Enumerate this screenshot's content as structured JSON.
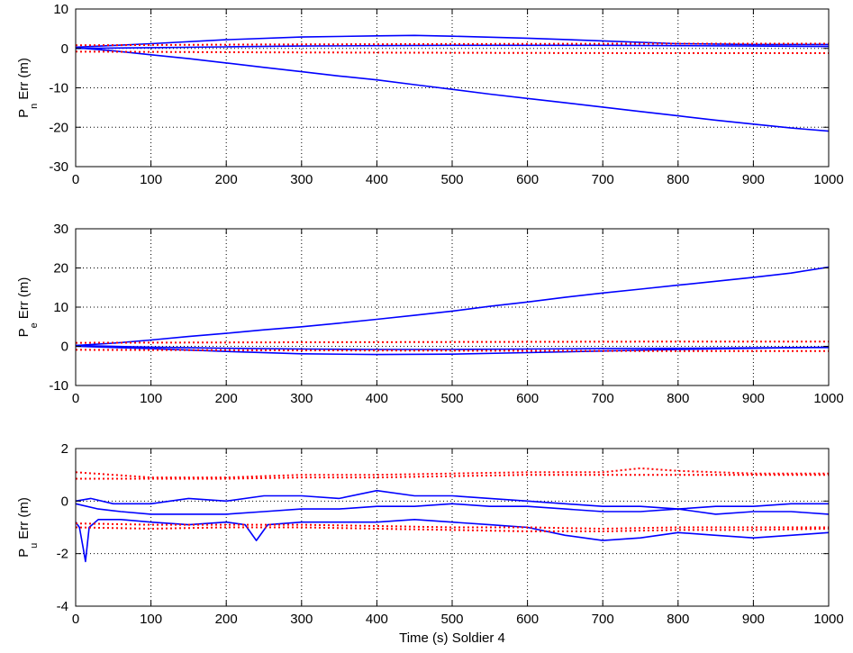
{
  "chart_data": [
    {
      "type": "line",
      "ylabel": {
        "base": "P",
        "sub": "n",
        "rest": "Err (m)"
      },
      "xlabel": "",
      "xlim": [
        0,
        1000
      ],
      "ylim": [
        -30,
        10
      ],
      "xticks": [
        0,
        100,
        200,
        300,
        400,
        500,
        600,
        700,
        800,
        900,
        1000
      ],
      "yticks": [
        -30,
        -20,
        -10,
        0,
        10
      ],
      "grid": true,
      "series": [
        {
          "color": "#0000ff",
          "style": "solid",
          "x": [
            0,
            50,
            100,
            150,
            200,
            250,
            300,
            350,
            400,
            450,
            500,
            550,
            600,
            650,
            700,
            750,
            800,
            850,
            900,
            950,
            1000
          ],
          "y": [
            0.2,
            -0.6,
            -1.6,
            -2.6,
            -3.7,
            -4.8,
            -5.9,
            -7.0,
            -8.0,
            -9.2,
            -10.4,
            -11.6,
            -12.7,
            -13.8,
            -14.9,
            -16.0,
            -17.1,
            -18.2,
            -19.2,
            -20.2,
            -21.0
          ]
        },
        {
          "color": "#0000ff",
          "style": "solid",
          "x": [
            0,
            100,
            200,
            300,
            400,
            450,
            500,
            600,
            700,
            800,
            900,
            1000
          ],
          "y": [
            0.3,
            1.2,
            2.2,
            2.9,
            3.2,
            3.3,
            3.1,
            2.6,
            1.9,
            1.2,
            1.0,
            1.0
          ]
        },
        {
          "color": "#0000ff",
          "style": "solid",
          "x": [
            0,
            100,
            200,
            300,
            400,
            500,
            600,
            700,
            800,
            900,
            1000
          ],
          "y": [
            0,
            0.2,
            0.4,
            0.6,
            0.7,
            0.8,
            0.8,
            0.8,
            0.7,
            0.6,
            0.5
          ]
        },
        {
          "color": "#ff0000",
          "style": "dotted",
          "x": [
            0,
            250,
            500,
            750,
            1000
          ],
          "y": [
            0.8,
            1.0,
            1.1,
            1.2,
            1.2
          ]
        },
        {
          "color": "#ff0000",
          "style": "dotted",
          "x": [
            0,
            250,
            500,
            750,
            1000
          ],
          "y": [
            -0.8,
            -1.0,
            -1.1,
            -1.2,
            -1.2
          ]
        }
      ]
    },
    {
      "type": "line",
      "ylabel": {
        "base": "P",
        "sub": "e",
        "rest": "Err (m)"
      },
      "xlabel": "",
      "xlim": [
        0,
        1000
      ],
      "ylim": [
        -10,
        30
      ],
      "xticks": [
        0,
        100,
        200,
        300,
        400,
        500,
        600,
        700,
        800,
        900,
        1000
      ],
      "yticks": [
        -10,
        0,
        10,
        20,
        30
      ],
      "grid": true,
      "series": [
        {
          "color": "#0000ff",
          "style": "solid",
          "x": [
            0,
            50,
            100,
            150,
            200,
            250,
            300,
            350,
            400,
            450,
            500,
            550,
            600,
            650,
            700,
            750,
            800,
            850,
            900,
            950,
            1000
          ],
          "y": [
            0.2,
            0.8,
            1.6,
            2.5,
            3.3,
            4.2,
            5.0,
            5.9,
            6.9,
            7.9,
            9.0,
            10.2,
            11.3,
            12.5,
            13.6,
            14.6,
            15.6,
            16.6,
            17.6,
            18.7,
            20.2
          ]
        },
        {
          "color": "#0000ff",
          "style": "solid",
          "x": [
            0,
            100,
            200,
            300,
            400,
            500,
            600,
            700,
            800,
            900,
            1000
          ],
          "y": [
            0,
            -0.6,
            -1.3,
            -1.9,
            -2.1,
            -2.0,
            -1.6,
            -1.2,
            -0.8,
            -0.5,
            -0.2
          ]
        },
        {
          "color": "#0000ff",
          "style": "solid",
          "x": [
            0,
            100,
            200,
            300,
            400,
            500,
            600,
            700,
            800,
            900,
            1000
          ],
          "y": [
            0.2,
            -0.2,
            -0.5,
            -0.7,
            -0.8,
            -0.8,
            -0.7,
            -0.6,
            -0.5,
            -0.4,
            -0.3
          ]
        },
        {
          "color": "#ff0000",
          "style": "dotted",
          "x": [
            0,
            250,
            500,
            750,
            1000
          ],
          "y": [
            0.9,
            1.0,
            1.1,
            1.2,
            1.2
          ]
        },
        {
          "color": "#ff0000",
          "style": "dotted",
          "x": [
            0,
            250,
            500,
            750,
            1000
          ],
          "y": [
            -0.9,
            -1.0,
            -1.1,
            -1.2,
            -1.2
          ]
        }
      ]
    },
    {
      "type": "line",
      "ylabel": {
        "base": "P",
        "sub": "u",
        "rest": "Err (m)"
      },
      "xlabel": "Time (s) Soldier 4",
      "xlim": [
        0,
        1000
      ],
      "ylim": [
        -4,
        2
      ],
      "xticks": [
        0,
        100,
        200,
        300,
        400,
        500,
        600,
        700,
        800,
        900,
        1000
      ],
      "yticks": [
        -4,
        -2,
        0,
        2
      ],
      "grid": true,
      "series": [
        {
          "color": "#0000ff",
          "style": "solid",
          "x": [
            0,
            20,
            50,
            100,
            150,
            200,
            250,
            300,
            350,
            400,
            450,
            500,
            550,
            600,
            650,
            700,
            750,
            800,
            850,
            900,
            950,
            1000
          ],
          "y": [
            0,
            0.1,
            -0.1,
            -0.1,
            0.1,
            0,
            0.2,
            0.2,
            0.1,
            0.4,
            0.2,
            0.2,
            0.1,
            0,
            -0.1,
            -0.2,
            -0.2,
            -0.3,
            -0.2,
            -0.2,
            -0.1,
            -0.1
          ]
        },
        {
          "color": "#0000ff",
          "style": "solid",
          "x": [
            0,
            30,
            60,
            100,
            150,
            200,
            250,
            300,
            350,
            400,
            450,
            500,
            550,
            600,
            650,
            700,
            750,
            800,
            850,
            900,
            950,
            1000
          ],
          "y": [
            -0.1,
            -0.3,
            -0.4,
            -0.5,
            -0.5,
            -0.5,
            -0.4,
            -0.3,
            -0.3,
            -0.2,
            -0.2,
            -0.1,
            -0.2,
            -0.2,
            -0.3,
            -0.4,
            -0.4,
            -0.3,
            -0.5,
            -0.4,
            -0.4,
            -0.5
          ]
        },
        {
          "color": "#0000ff",
          "style": "solid",
          "x": [
            0,
            5,
            10,
            13,
            18,
            30,
            60,
            100,
            150,
            200,
            225,
            240,
            255,
            300,
            350,
            400,
            450,
            500,
            550,
            600,
            650,
            700,
            750,
            800,
            850,
            900,
            950,
            1000
          ],
          "y": [
            -0.8,
            -1.0,
            -1.8,
            -2.3,
            -1.0,
            -0.7,
            -0.7,
            -0.8,
            -0.9,
            -0.8,
            -0.9,
            -1.5,
            -0.9,
            -0.8,
            -0.8,
            -0.8,
            -0.7,
            -0.8,
            -0.9,
            -1.0,
            -1.3,
            -1.5,
            -1.4,
            -1.2,
            -1.3,
            -1.4,
            -1.3,
            -1.2
          ]
        },
        {
          "color": "#ff0000",
          "style": "dotted",
          "x": [
            0,
            100,
            200,
            300,
            400,
            500,
            600,
            700,
            750,
            800,
            900,
            1000
          ],
          "y": [
            1.1,
            0.9,
            0.9,
            1.0,
            1.0,
            1.05,
            1.1,
            1.1,
            1.25,
            1.15,
            1.05,
            1.05
          ]
        },
        {
          "color": "#ff0000",
          "style": "dotted",
          "x": [
            0,
            100,
            200,
            300,
            400,
            500,
            600,
            700,
            800,
            900,
            1000
          ],
          "y": [
            0.85,
            0.85,
            0.85,
            0.9,
            0.9,
            0.95,
            1.0,
            1.0,
            1.0,
            1.0,
            1.0
          ]
        },
        {
          "color": "#ff0000",
          "style": "dotted",
          "x": [
            0,
            100,
            200,
            300,
            400,
            500,
            600,
            700,
            800,
            900,
            1000
          ],
          "y": [
            -0.85,
            -0.9,
            -0.9,
            -0.9,
            -0.95,
            -1.0,
            -1.0,
            -1.05,
            -1.0,
            -1.0,
            -1.0
          ]
        },
        {
          "color": "#ff0000",
          "style": "dotted",
          "x": [
            0,
            100,
            200,
            300,
            400,
            500,
            600,
            700,
            800,
            900,
            1000
          ],
          "y": [
            -1.0,
            -1.05,
            -1.0,
            -1.0,
            -1.05,
            -1.1,
            -1.15,
            -1.15,
            -1.1,
            -1.1,
            -1.05
          ]
        }
      ]
    }
  ]
}
